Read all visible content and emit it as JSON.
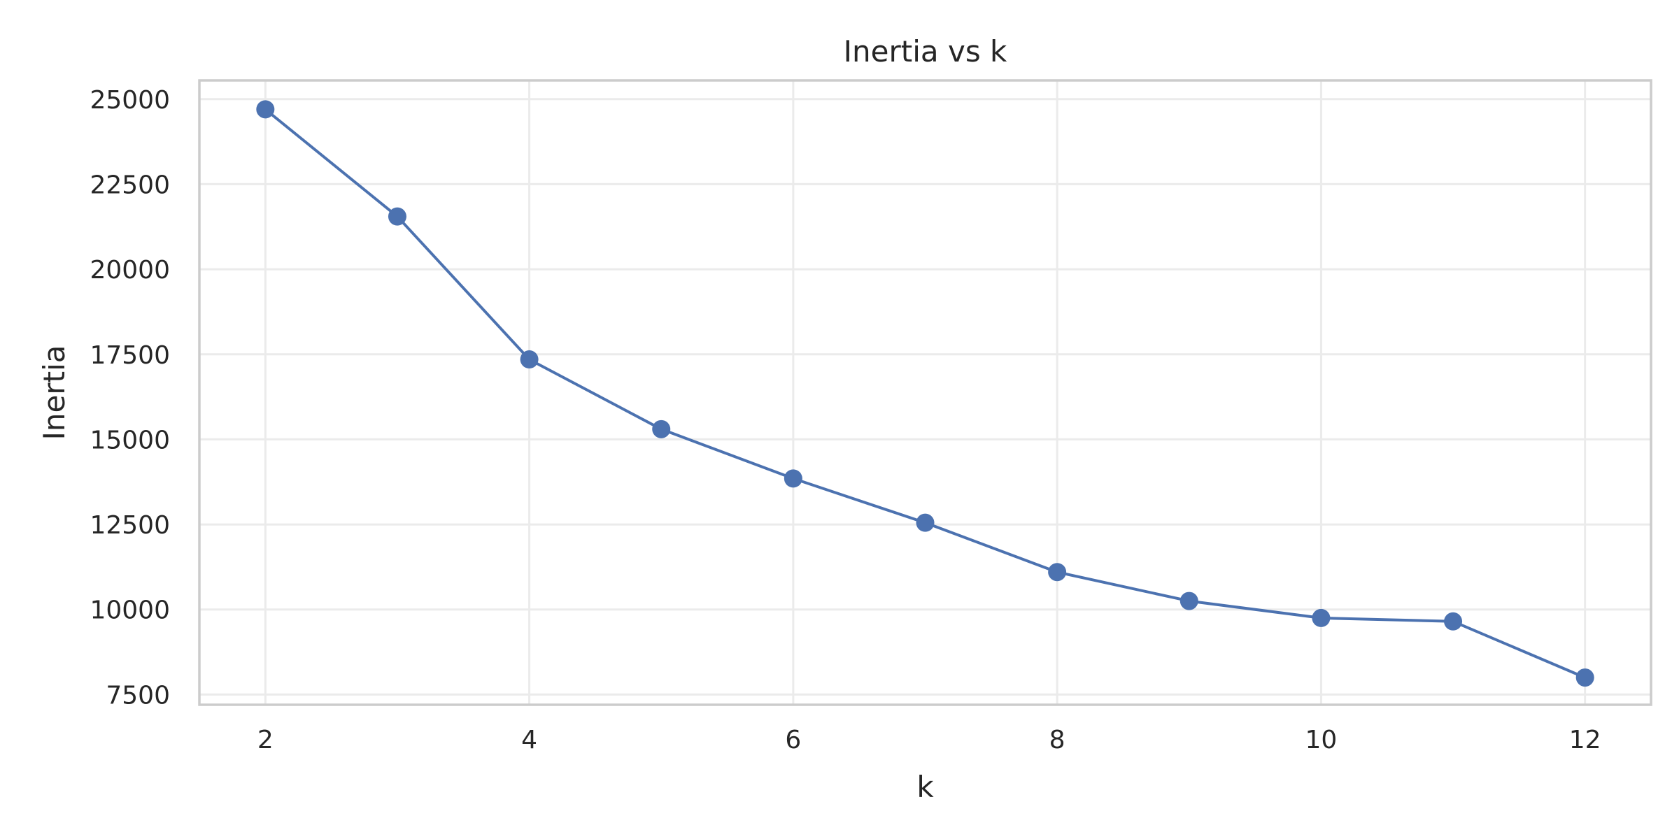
{
  "chart_data": {
    "type": "line",
    "title": "Inertia vs k",
    "xlabel": "k",
    "ylabel": "Inertia",
    "xlim": [
      1.5,
      12.5
    ],
    "ylim": [
      7200,
      25550
    ],
    "x_ticks": [
      2,
      4,
      6,
      8,
      10,
      12
    ],
    "y_ticks": [
      7500,
      10000,
      12500,
      15000,
      17500,
      20000,
      22500,
      25000
    ],
    "grid": true,
    "series": [
      {
        "x": [
          2,
          3,
          4,
          5,
          6,
          7,
          8,
          9,
          10,
          11,
          12
        ],
        "values": [
          24700,
          21550,
          17350,
          15300,
          13850,
          12550,
          11100,
          10250,
          9750,
          9650,
          8000
        ],
        "color": "#4c72b0",
        "marker": "circle"
      }
    ]
  }
}
